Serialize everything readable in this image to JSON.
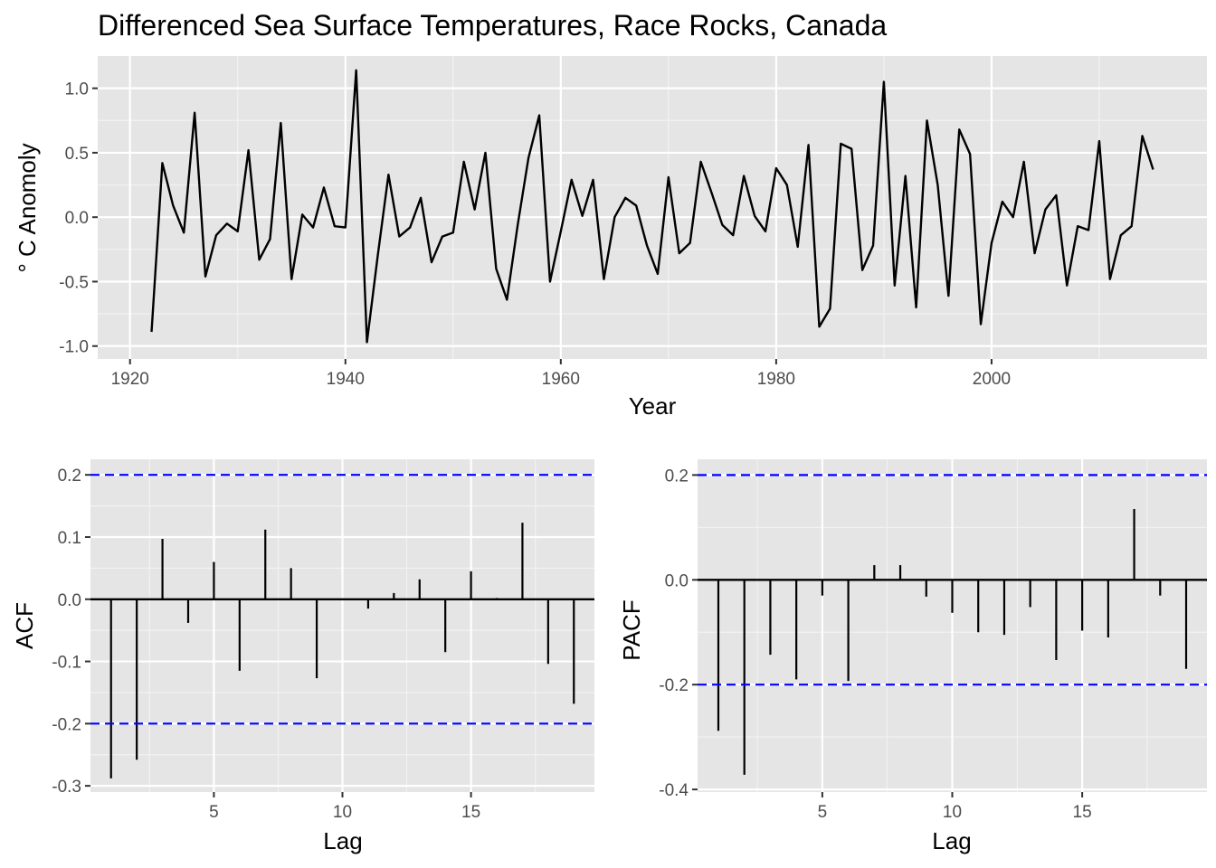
{
  "chart_data": [
    {
      "type": "line",
      "title": "Differenced Sea Surface Temperatures, Race Rocks, Canada",
      "xlabel": "Year",
      "ylabel": "° C Anomoly",
      "xlim": [
        1917,
        2020
      ],
      "ylim": [
        -1.1,
        1.25
      ],
      "xticks": [
        1920,
        1940,
        1960,
        1980,
        2000
      ],
      "xtick_labels": [
        "1920",
        "1940",
        "1960",
        "1980",
        "2000"
      ],
      "yticks": [
        -1.0,
        -0.5,
        0.0,
        0.5,
        1.0
      ],
      "ytick_labels": [
        "-1.0",
        "-0.5",
        "0.0",
        "0.5",
        "1.0"
      ],
      "grid": true,
      "x": [
        1922,
        1923,
        1924,
        1925,
        1926,
        1927,
        1928,
        1929,
        1930,
        1931,
        1932,
        1933,
        1934,
        1935,
        1936,
        1937,
        1938,
        1939,
        1940,
        1941,
        1942,
        1943,
        1944,
        1945,
        1946,
        1947,
        1948,
        1949,
        1950,
        1951,
        1952,
        1953,
        1954,
        1955,
        1956,
        1957,
        1958,
        1959,
        1960,
        1961,
        1962,
        1963,
        1964,
        1965,
        1966,
        1967,
        1968,
        1969,
        1970,
        1971,
        1972,
        1973,
        1974,
        1975,
        1976,
        1977,
        1978,
        1979,
        1980,
        1981,
        1982,
        1983,
        1984,
        1985,
        1986,
        1987,
        1988,
        1989,
        1990,
        1991,
        1992,
        1993,
        1994,
        1995,
        1996,
        1997,
        1998,
        1999,
        2000,
        2001,
        2002,
        2003,
        2004,
        2005,
        2006,
        2007,
        2008,
        2009,
        2010,
        2011,
        2012,
        2013,
        2014,
        2015
      ],
      "y": [
        -0.89,
        0.42,
        0.09,
        -0.12,
        0.81,
        -0.46,
        -0.14,
        -0.05,
        -0.11,
        0.52,
        -0.33,
        -0.17,
        0.73,
        -0.48,
        0.02,
        -0.08,
        0.23,
        -0.07,
        -0.08,
        1.14,
        -0.97,
        -0.3,
        0.33,
        -0.15,
        -0.08,
        0.15,
        -0.35,
        -0.15,
        -0.12,
        0.43,
        0.06,
        0.5,
        -0.4,
        -0.64,
        -0.06,
        0.46,
        0.79,
        -0.5,
        -0.11,
        0.29,
        0.01,
        0.29,
        -0.48,
        0.0,
        0.15,
        0.09,
        -0.22,
        -0.44,
        0.31,
        -0.28,
        -0.2,
        0.43,
        0.19,
        -0.06,
        -0.14,
        0.32,
        0.01,
        -0.11,
        0.38,
        0.25,
        -0.23,
        0.56,
        -0.85,
        -0.71,
        0.57,
        0.53,
        -0.41,
        -0.22,
        1.05,
        -0.53,
        0.32,
        -0.7,
        0.75,
        0.25,
        -0.61,
        0.68,
        0.49,
        -0.83,
        -0.2,
        0.12,
        0.0,
        0.43,
        -0.28,
        0.06,
        0.17,
        -0.53,
        -0.07,
        -0.1,
        0.59,
        -0.48,
        -0.14,
        -0.07,
        0.63,
        0.37
      ]
    },
    {
      "type": "bar",
      "xlabel": "Lag",
      "ylabel": "ACF",
      "xlim": [
        0.2,
        19.8
      ],
      "ylim": [
        -0.31,
        0.225
      ],
      "xticks": [
        5,
        10,
        15
      ],
      "xtick_labels": [
        "5",
        "10",
        "15"
      ],
      "yticks": [
        -0.3,
        -0.2,
        -0.1,
        0.0,
        0.1,
        0.2
      ],
      "ytick_labels": [
        "-0.3",
        "-0.2",
        "-0.1",
        "0.0",
        "0.1",
        "0.2"
      ],
      "confidence_bounds": [
        -0.2,
        0.2
      ],
      "bound_color": "#0000ff",
      "grid": true,
      "lags": [
        1,
        2,
        3,
        4,
        5,
        6,
        7,
        8,
        9,
        10,
        11,
        12,
        13,
        14,
        15,
        16,
        17,
        18,
        19
      ],
      "values": [
        -0.288,
        -0.258,
        0.097,
        -0.038,
        0.06,
        -0.115,
        0.112,
        0.05,
        -0.127,
        0.0,
        -0.015,
        0.01,
        0.032,
        -0.085,
        0.045,
        0.002,
        0.123,
        -0.104,
        -0.168
      ]
    },
    {
      "type": "bar",
      "xlabel": "Lag",
      "ylabel": "PACF",
      "xlim": [
        0.2,
        19.8
      ],
      "ylim": [
        -0.405,
        0.23
      ],
      "xticks": [
        5,
        10,
        15
      ],
      "xtick_labels": [
        "5",
        "10",
        "15"
      ],
      "yticks": [
        -0.4,
        -0.2,
        0.0,
        0.2
      ],
      "ytick_labels": [
        "-0.4",
        "-0.2",
        "0.0",
        "0.2"
      ],
      "confidence_bounds": [
        -0.2,
        0.2
      ],
      "bound_color": "#0000ff",
      "grid": true,
      "lags": [
        1,
        2,
        3,
        4,
        5,
        6,
        7,
        8,
        9,
        10,
        11,
        12,
        13,
        14,
        15,
        16,
        17,
        18,
        19
      ],
      "values": [
        -0.288,
        -0.372,
        -0.143,
        -0.19,
        -0.03,
        -0.193,
        0.028,
        0.028,
        -0.032,
        -0.063,
        -0.1,
        -0.105,
        -0.052,
        -0.153,
        -0.097,
        -0.11,
        0.135,
        -0.03,
        -0.17
      ]
    }
  ]
}
